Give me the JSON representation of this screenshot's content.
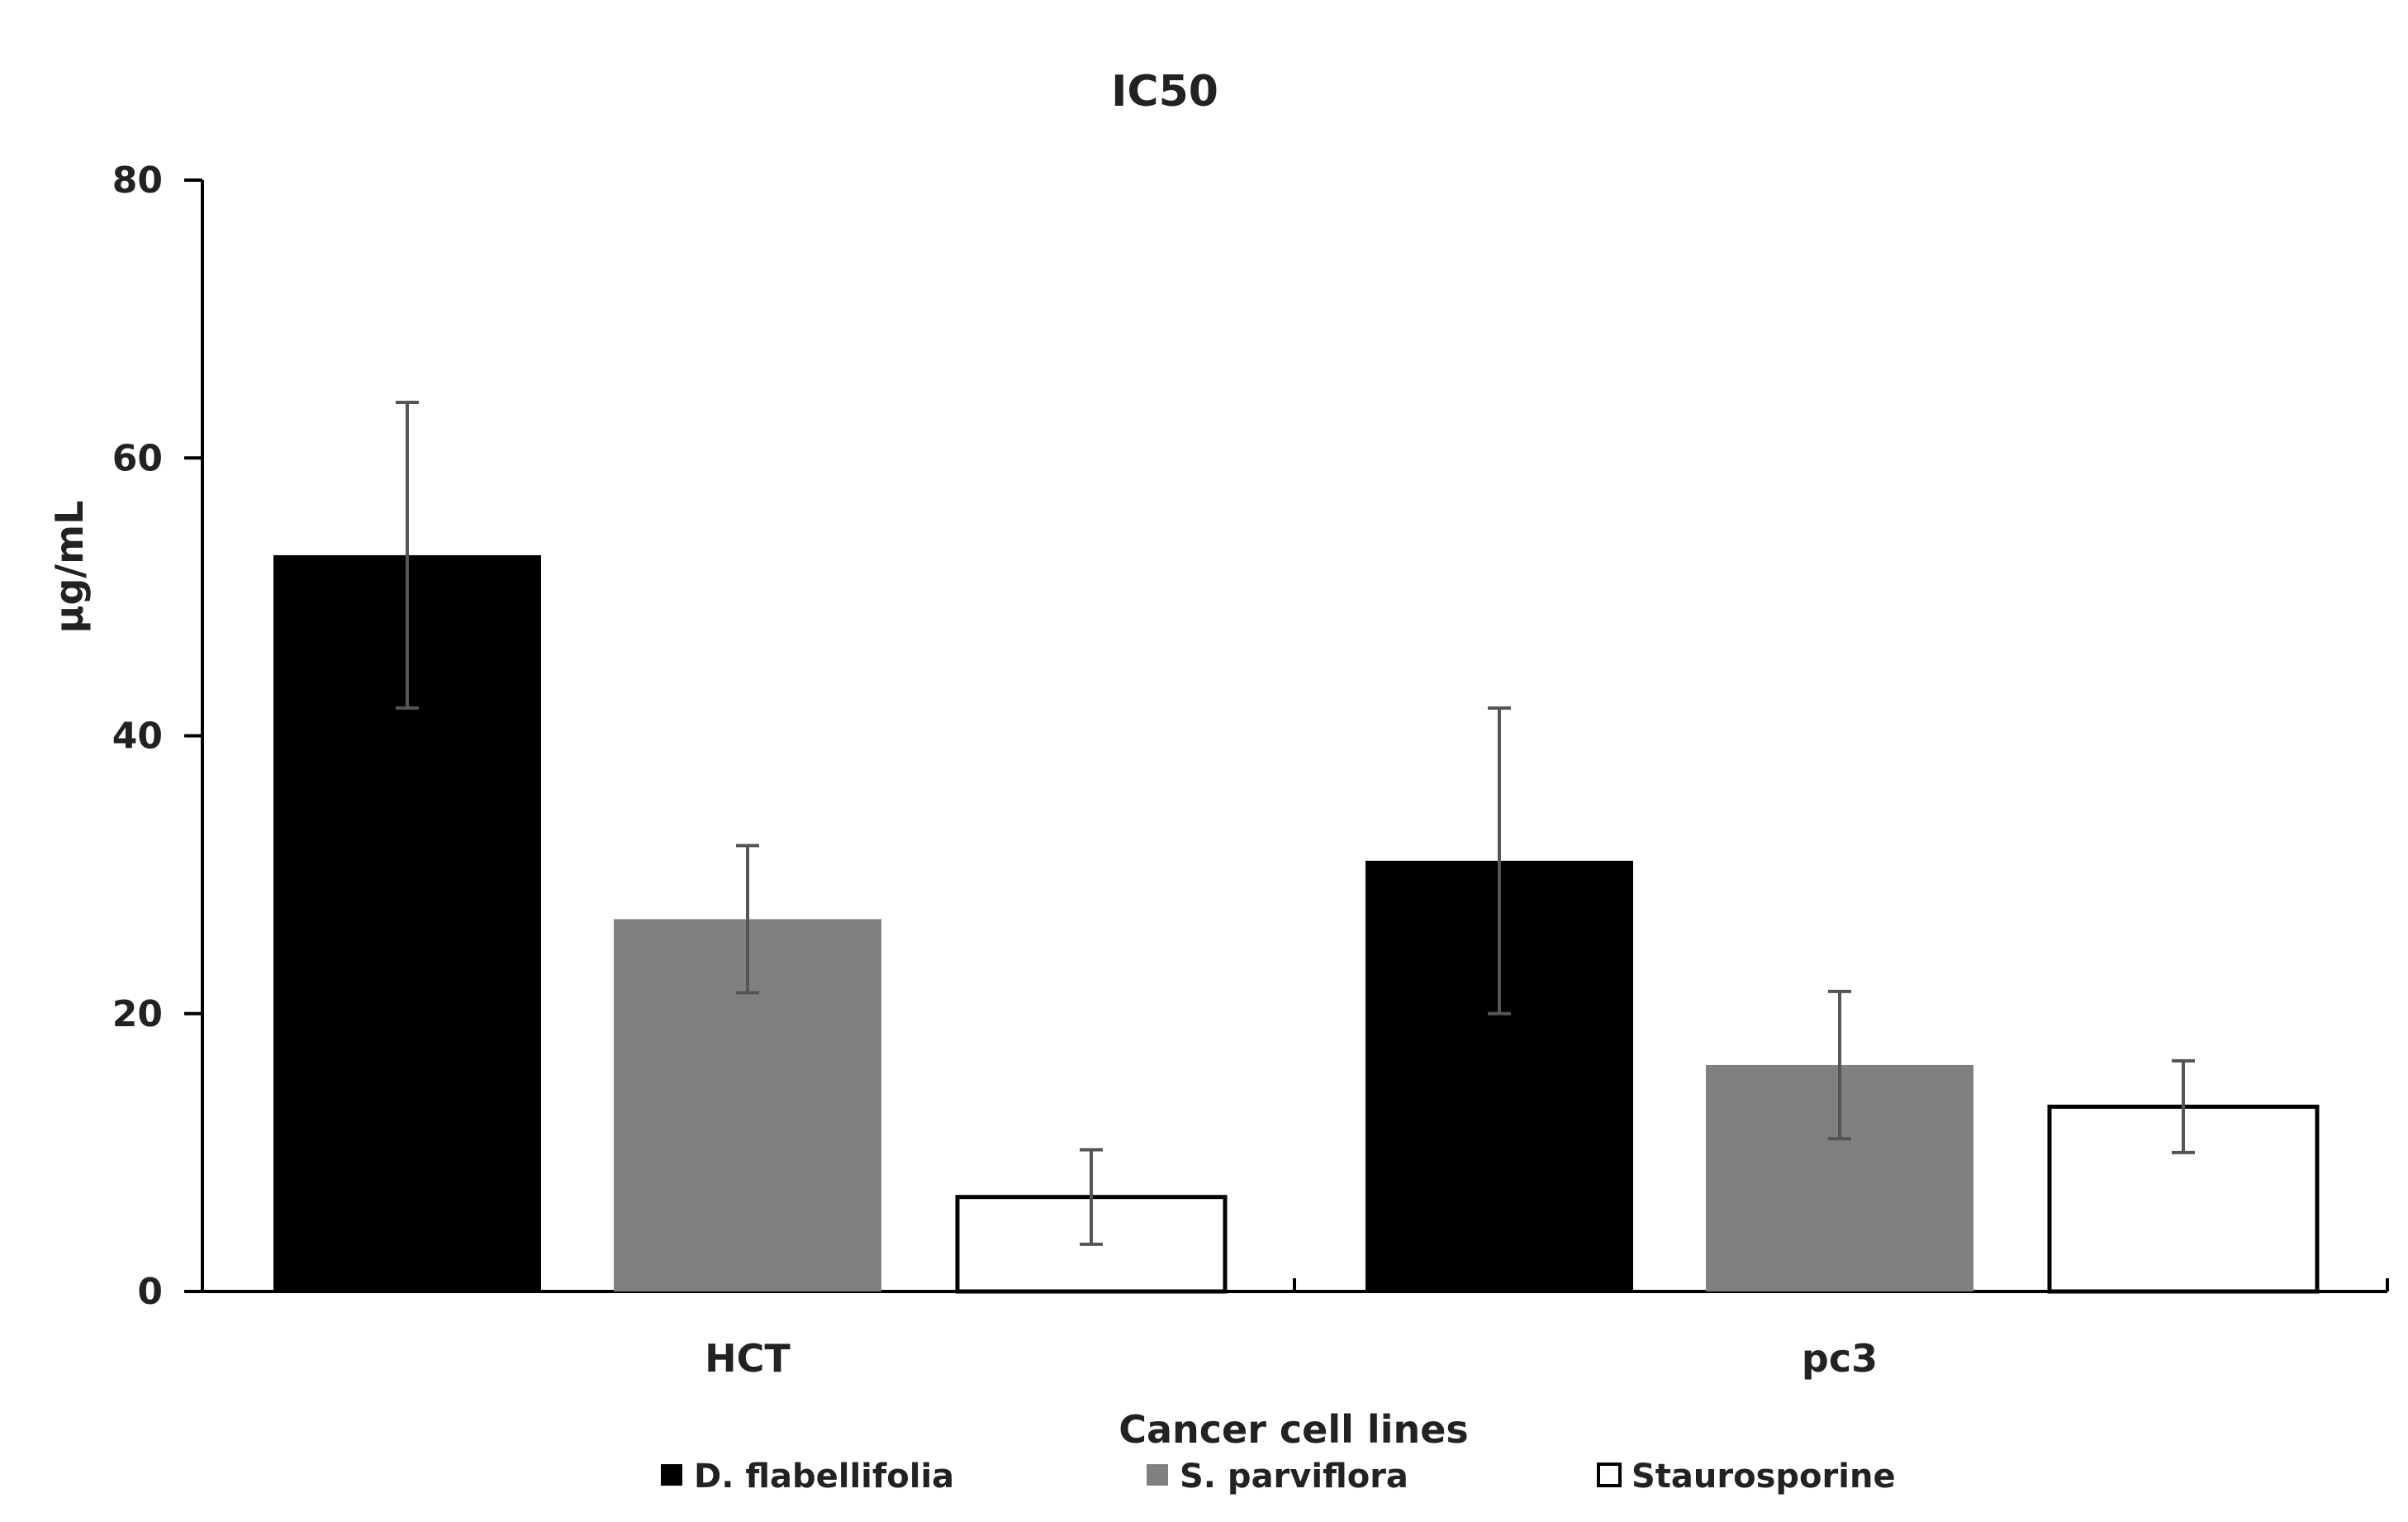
{
  "chart_data": {
    "type": "bar",
    "title": "IC50",
    "xlabel": "Cancer cell lines",
    "ylabel": "µg/mL",
    "ylim": [
      0,
      80
    ],
    "yticks": [
      0,
      20,
      40,
      60,
      80
    ],
    "categories": [
      "HCT",
      "pc3"
    ],
    "grid": false,
    "legend_position": "bottom",
    "series": [
      {
        "name": "D. flabellifolia",
        "color": "#000000",
        "fill": "#000000",
        "values": [
          53,
          31
        ],
        "errors": [
          11,
          11
        ]
      },
      {
        "name": "S. parviflora",
        "color": "#808080",
        "fill": "#808080",
        "values": [
          26.8,
          16.3
        ],
        "errors": [
          5.3,
          5.3
        ]
      },
      {
        "name": "Staurosporine",
        "color": "#000000",
        "fill": "#ffffff",
        "values": [
          6.8,
          13.3
        ],
        "errors": [
          3.4,
          3.3
        ]
      }
    ]
  }
}
